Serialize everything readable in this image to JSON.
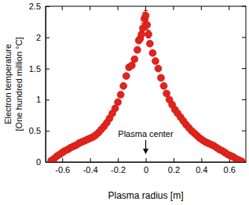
{
  "chart_data": {
    "type": "scatter",
    "x_label": "Plasma radius [m]",
    "y_label": [
      "Electron temperature",
      "[One hundred million °C]"
    ],
    "annotation": "Plasma center",
    "color": "#e3231c",
    "marker": "circle",
    "grid": false,
    "xlim": [
      -0.72,
      0.72
    ],
    "xticks": [
      -0.6,
      -0.4,
      -0.2,
      0,
      0.2,
      0.4,
      0.6
    ],
    "ylim": [
      0,
      2.5
    ],
    "yticks": [
      0,
      0.5,
      1,
      1.5,
      2,
      2.5
    ],
    "x": [
      -0.68,
      -0.66,
      -0.64,
      -0.62,
      -0.6,
      -0.58,
      -0.56,
      -0.54,
      -0.52,
      -0.5,
      -0.48,
      -0.46,
      -0.44,
      -0.42,
      -0.4,
      -0.38,
      -0.36,
      -0.34,
      -0.32,
      -0.3,
      -0.28,
      -0.26,
      -0.24,
      -0.22,
      -0.2,
      -0.18,
      -0.16,
      -0.14,
      -0.12,
      -0.1,
      -0.08,
      -0.06,
      -0.05,
      -0.04,
      -0.03,
      -0.02,
      -0.01,
      0.0,
      0.01,
      0.02,
      0.03,
      0.05,
      0.07,
      0.09,
      0.11,
      0.13,
      0.15,
      0.17,
      0.19,
      0.21,
      0.23,
      0.25,
      0.27,
      0.29,
      0.31,
      0.33,
      0.35,
      0.37,
      0.39,
      0.41,
      0.43,
      0.45,
      0.47,
      0.49,
      0.51,
      0.53,
      0.55,
      0.57,
      0.59,
      0.61,
      0.63,
      0.65,
      0.67,
      0.69
    ],
    "y": [
      0.02,
      0.05,
      0.09,
      0.12,
      0.15,
      0.18,
      0.2,
      0.23,
      0.25,
      0.27,
      0.3,
      0.32,
      0.34,
      0.36,
      0.38,
      0.4,
      0.43,
      0.47,
      0.52,
      0.57,
      0.63,
      0.7,
      0.78,
      0.86,
      0.96,
      1.08,
      1.22,
      1.38,
      1.52,
      1.55,
      1.65,
      1.8,
      1.95,
      1.98,
      2.05,
      2.15,
      2.3,
      2.35,
      2.2,
      2.05,
      1.9,
      1.75,
      1.62,
      1.5,
      1.35,
      1.22,
      1.1,
      1.0,
      0.92,
      0.84,
      0.78,
      0.72,
      0.66,
      0.6,
      0.55,
      0.5,
      0.46,
      0.42,
      0.38,
      0.35,
      0.32,
      0.3,
      0.28,
      0.26,
      0.23,
      0.2,
      0.18,
      0.15,
      0.12,
      0.1,
      0.08,
      0.05,
      0.03,
      0.01
    ],
    "errors": [
      null,
      null,
      null,
      null,
      null,
      null,
      null,
      null,
      null,
      null,
      null,
      null,
      null,
      null,
      null,
      null,
      null,
      null,
      null,
      null,
      null,
      null,
      null,
      null,
      null,
      null,
      null,
      null,
      null,
      null,
      null,
      null,
      null,
      null,
      0.06,
      0.08,
      0.1,
      0.08,
      0.08,
      0.06,
      null,
      null,
      null,
      null,
      null,
      null,
      null,
      null,
      null,
      null,
      null,
      null,
      null,
      null,
      null,
      null,
      null,
      null,
      null,
      null,
      null,
      null,
      null,
      null,
      null,
      null,
      null,
      null,
      null,
      null,
      null,
      null,
      null,
      null
    ]
  }
}
